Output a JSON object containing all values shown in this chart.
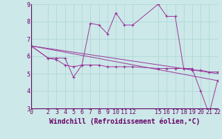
{
  "xlabel": "Windchill (Refroidissement éolien,°C)",
  "bg_color": "#cce8e8",
  "line_color": "#993399",
  "series": [
    {
      "x": [
        0,
        2,
        3,
        4,
        5,
        6,
        7,
        8,
        9,
        10,
        11,
        12,
        15,
        16,
        17,
        18,
        19,
        20,
        21,
        22
      ],
      "y": [
        6.6,
        5.9,
        5.9,
        5.9,
        4.8,
        5.5,
        7.9,
        7.8,
        7.3,
        8.5,
        7.8,
        7.8,
        9.0,
        8.3,
        8.3,
        5.3,
        5.3,
        4.0,
        2.7,
        4.6
      ],
      "marker": true
    },
    {
      "x": [
        0,
        2,
        3,
        4,
        5,
        6,
        7,
        8,
        9,
        10,
        11,
        12,
        15,
        16,
        17,
        18,
        19,
        20,
        21,
        22
      ],
      "y": [
        6.6,
        5.9,
        5.8,
        5.5,
        5.4,
        5.5,
        5.5,
        5.5,
        5.4,
        5.4,
        5.4,
        5.4,
        5.3,
        5.3,
        5.3,
        5.3,
        5.2,
        5.2,
        5.1,
        5.1
      ],
      "marker": true
    },
    {
      "x": [
        0,
        22
      ],
      "y": [
        6.6,
        5.0
      ],
      "marker": false
    },
    {
      "x": [
        0,
        22
      ],
      "y": [
        6.6,
        4.6
      ],
      "marker": false
    }
  ],
  "xlim": [
    0,
    22
  ],
  "ylim": [
    3,
    9
  ],
  "yticks": [
    3,
    4,
    5,
    6,
    7,
    8,
    9
  ],
  "xticks": [
    0,
    2,
    3,
    4,
    5,
    6,
    7,
    8,
    9,
    10,
    11,
    12,
    15,
    16,
    17,
    18,
    19,
    20,
    21,
    22
  ],
  "grid_color": "#aad4d4",
  "tick_color": "#660066",
  "tick_label_fontsize": 6,
  "xlabel_fontsize": 7,
  "axis_line_color": "#660066"
}
